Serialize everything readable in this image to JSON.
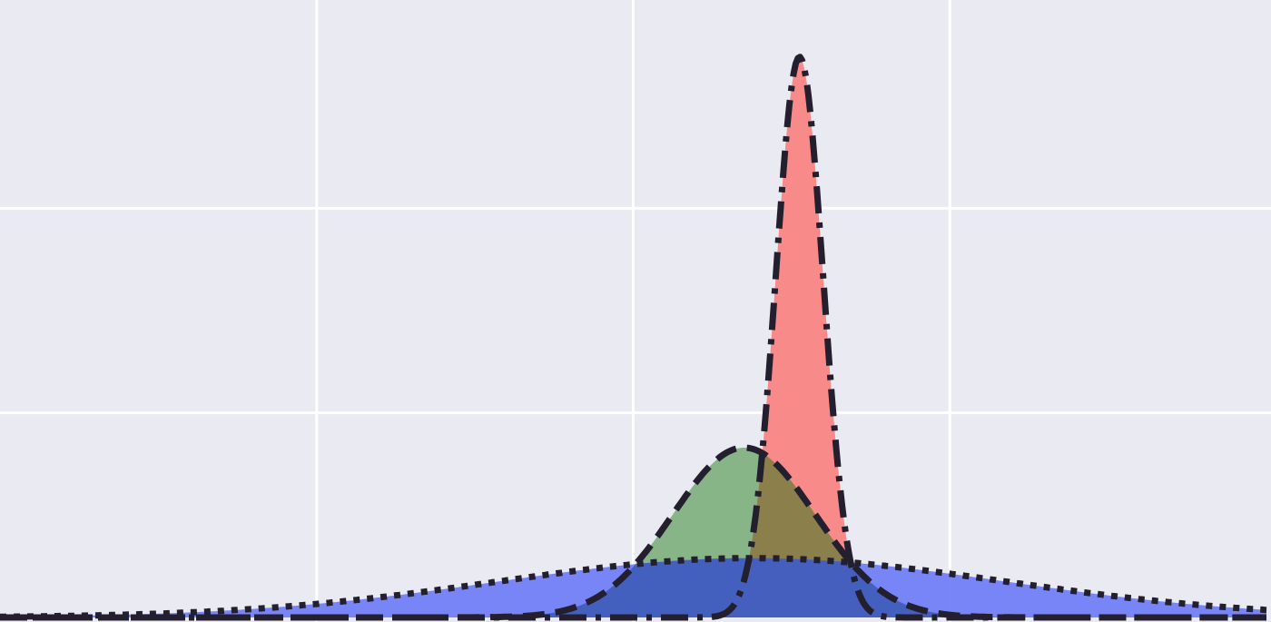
{
  "chart_data": {
    "type": "area",
    "title": "",
    "xlabel": "",
    "ylabel": "",
    "xlim": [
      -4,
      4
    ],
    "ylim": [
      0,
      3
    ],
    "grid": true,
    "x_gridlines": [
      -2,
      0,
      2
    ],
    "y_gridlines": [
      1,
      2
    ],
    "series": [
      {
        "mean": 1.05,
        "sd": 0.15,
        "peak": 2.74,
        "color": "#f88a8a",
        "line_style": "dashdot",
        "z_order": 1
      },
      {
        "mean": 0.7,
        "sd": 0.45,
        "peak": 0.83,
        "color": "#87b587",
        "line_style": "dashed",
        "z_order": 2
      },
      {
        "mean": 0.75,
        "sd": 1.6,
        "peak": 0.29,
        "color": "#6d7cf6",
        "line_style": "dotted",
        "z_order": 3
      }
    ],
    "overlap_color": "#8b7f4c",
    "background_color": "#eaeaf2",
    "grid_color": "#ffffff",
    "outline_color": "#241f2e"
  }
}
